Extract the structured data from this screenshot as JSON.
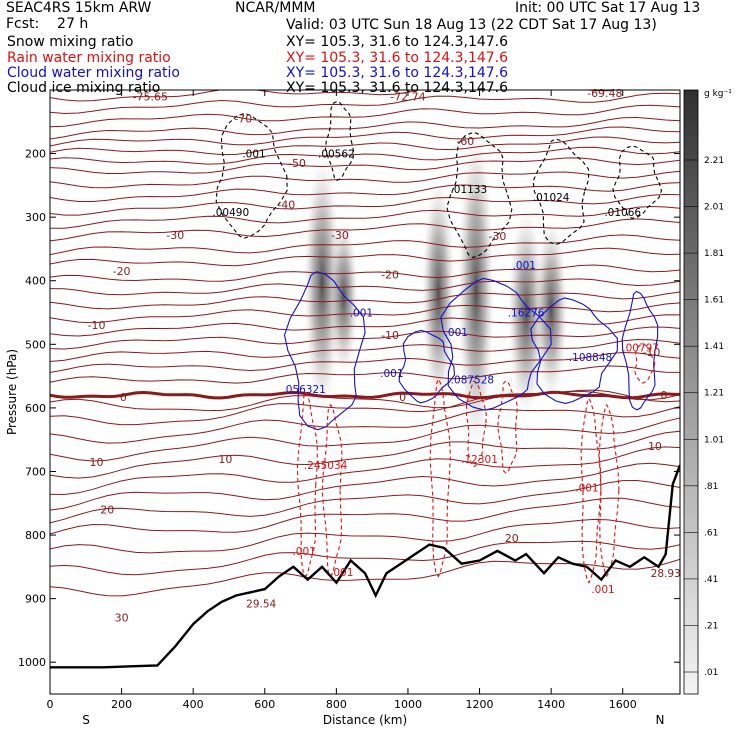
{
  "header": {
    "model": "SEAC4RS 15km ARW",
    "forecast": "Fcst:    27 h",
    "center": "NCAR/MMM",
    "init": "Init: 00 UTC Sat 17 Aug 13",
    "valid": "Valid: 03 UTC Sun 18 Aug 13 (22 CDT Sat 17 Aug 13)",
    "fields": [
      {
        "label": "Snow mixing ratio",
        "xy": "XY= 105.3, 31.6 to 124.3,147.6",
        "color": "#000000"
      },
      {
        "label": "Rain water mixing ratio",
        "xy": "XY= 105.3, 31.6 to 124.3,147.6",
        "color": "#e01010"
      },
      {
        "label": "Cloud water mixing ratio",
        "xy": "XY= 105.3, 31.6 to 124.3,147.6",
        "color": "#1010d0"
      },
      {
        "label": "Cloud ice mixing ratio",
        "xy": "XY= 105.3, 31.6 to 124.3,147.6",
        "color": "#000000"
      }
    ]
  },
  "chart_data": {
    "type": "cross-section",
    "xlabel": "Distance (km)",
    "ylabel": "Pressure (hPa)",
    "xlim": [
      0,
      1760
    ],
    "ylim": [
      100,
      1050
    ],
    "x_ticks": [
      0,
      200,
      400,
      600,
      800,
      1000,
      1200,
      1400,
      1600
    ],
    "y_ticks": [
      200,
      300,
      400,
      500,
      600,
      700,
      800,
      900,
      1000
    ],
    "end_labels": {
      "left": "S",
      "right": "N"
    },
    "colorbar": {
      "unit": "g kg⁻¹",
      "ticks": [
        "2.21",
        "2.01",
        "1.81",
        "1.61",
        "1.41",
        "1.21",
        "1.01",
        ".81",
        ".61",
        ".41",
        ".21",
        ".01"
      ]
    },
    "temperature_labels": [
      {
        "text": "-75.65",
        "x": 280,
        "p": 110
      },
      {
        "text": "-72.74",
        "x": 1000,
        "p": 110
      },
      {
        "text": "-69.48",
        "x": 1550,
        "p": 105
      },
      {
        "text": "-70",
        "x": 540,
        "p": 145
      },
      {
        "text": "-60",
        "x": 1160,
        "p": 180
      },
      {
        "text": "-50",
        "x": 690,
        "p": 215
      },
      {
        "text": "-40",
        "x": 660,
        "p": 280
      },
      {
        "text": "-30",
        "x": 350,
        "p": 328
      },
      {
        "text": "-30",
        "x": 810,
        "p": 328
      },
      {
        "text": "-30",
        "x": 1250,
        "p": 330
      },
      {
        "text": "-20",
        "x": 200,
        "p": 385
      },
      {
        "text": "-20",
        "x": 950,
        "p": 390
      },
      {
        "text": "-10",
        "x": 130,
        "p": 470
      },
      {
        "text": "-10",
        "x": 950,
        "p": 485
      },
      {
        "text": "-10",
        "x": 1680,
        "p": 512
      },
      {
        "text": "0",
        "x": 205,
        "p": 583
      },
      {
        "text": "0",
        "x": 985,
        "p": 583
      },
      {
        "text": "0",
        "x": 1715,
        "p": 580
      },
      {
        "text": "10",
        "x": 130,
        "p": 685
      },
      {
        "text": "10",
        "x": 490,
        "p": 680
      },
      {
        "text": "10",
        "x": 1690,
        "p": 660
      },
      {
        "text": "20",
        "x": 160,
        "p": 760
      },
      {
        "text": "20",
        "x": 1290,
        "p": 805
      },
      {
        "text": "30",
        "x": 200,
        "p": 930
      }
    ],
    "maxima_labels": [
      {
        "text": ".001",
        "x": 570,
        "p": 200,
        "color": "#000000"
      },
      {
        "text": ".00562",
        "x": 800,
        "p": 200,
        "color": "#000000"
      },
      {
        "text": ".00490",
        "x": 505,
        "p": 292,
        "color": "#000000"
      },
      {
        "text": ".01133",
        "x": 1170,
        "p": 256,
        "color": "#000000"
      },
      {
        "text": ".01024",
        "x": 1400,
        "p": 268,
        "color": "#000000"
      },
      {
        "text": ".01066",
        "x": 1600,
        "p": 292,
        "color": "#000000"
      },
      {
        "text": ".001",
        "x": 870,
        "p": 450,
        "color": "#1010d0"
      },
      {
        "text": ".001",
        "x": 1135,
        "p": 481,
        "color": "#1010d0"
      },
      {
        "text": ".001",
        "x": 1325,
        "p": 375,
        "color": "#1010d0"
      },
      {
        "text": ".16276",
        "x": 1330,
        "p": 450,
        "color": "#1010d0"
      },
      {
        "text": ".108848",
        "x": 1510,
        "p": 520,
        "color": "#1010d0"
      },
      {
        "text": ".001",
        "x": 955,
        "p": 545,
        "color": "#1010d0"
      },
      {
        "text": ".056321",
        "x": 710,
        "p": 570,
        "color": "#1010d0"
      },
      {
        "text": ".087528",
        "x": 1180,
        "p": 555,
        "color": "#1010d0"
      },
      {
        "text": ".00797",
        "x": 1650,
        "p": 505,
        "color": "#e01010"
      },
      {
        "text": ".245034",
        "x": 770,
        "p": 690,
        "color": "#e01010"
      },
      {
        "text": ".12301",
        "x": 1200,
        "p": 680,
        "color": "#e01010"
      },
      {
        "text": ".001",
        "x": 1500,
        "p": 725,
        "color": "#e01010"
      },
      {
        "text": ".001",
        "x": 710,
        "p": 825,
        "color": "#e01010"
      },
      {
        "text": ".001",
        "x": 815,
        "p": 858,
        "color": "#e01010"
      },
      {
        "text": ".001",
        "x": 1545,
        "p": 885,
        "color": "#e01010"
      },
      {
        "text": "28.93",
        "x": 1720,
        "p": 860,
        "color": "#8b1a1a"
      },
      {
        "text": "29.54",
        "x": 590,
        "p": 908,
        "color": "#8b1a1a"
      }
    ],
    "terrain": {
      "x": [
        0,
        150,
        300,
        350,
        400,
        440,
        480,
        520,
        560,
        600,
        640,
        680,
        720,
        760,
        800,
        840,
        880,
        910,
        940,
        980,
        1020,
        1060,
        1100,
        1150,
        1200,
        1250,
        1300,
        1330,
        1380,
        1420,
        1460,
        1500,
        1540,
        1580,
        1620,
        1660,
        1700,
        1720,
        1740,
        1760
      ],
      "p": [
        1008,
        1008,
        1005,
        975,
        940,
        920,
        905,
        895,
        890,
        885,
        865,
        850,
        870,
        850,
        875,
        840,
        860,
        895,
        860,
        845,
        830,
        815,
        820,
        845,
        840,
        825,
        840,
        830,
        860,
        835,
        845,
        850,
        870,
        840,
        850,
        835,
        850,
        830,
        720,
        690
      ]
    }
  }
}
